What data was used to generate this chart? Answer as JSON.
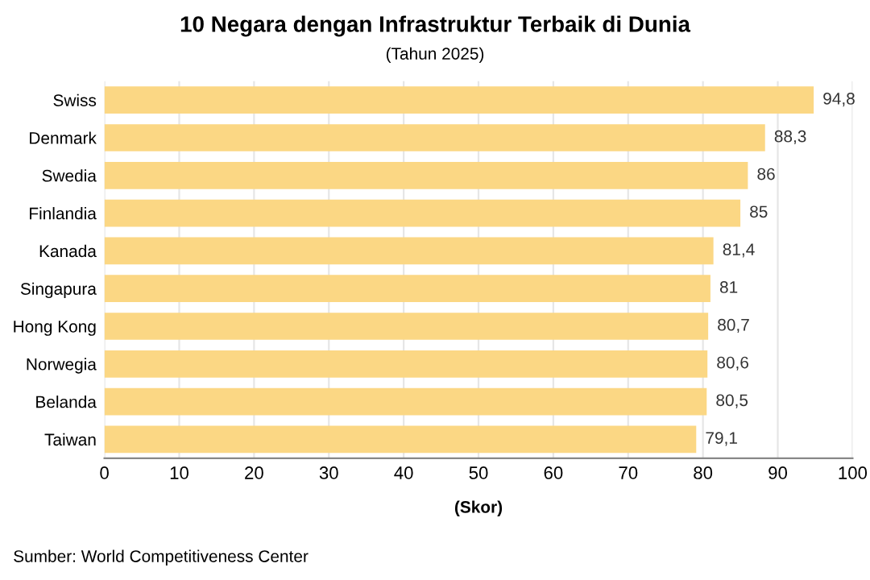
{
  "chart_data": {
    "type": "bar",
    "orientation": "horizontal",
    "title": "10 Negara dengan Infrastruktur Terbaik di Dunia",
    "subtitle": "(Tahun 2025)",
    "xlabel": "(Skor)",
    "categories": [
      "Swiss",
      "Denmark",
      "Swedia",
      "Finlandia",
      "Kanada",
      "Singapura",
      "Hong Kong",
      "Norwegia",
      "Belanda",
      "Taiwan"
    ],
    "values": [
      94.8,
      88.3,
      86,
      85,
      81.4,
      81,
      80.7,
      80.6,
      80.5,
      79.1
    ],
    "value_labels": [
      "94,8",
      "88,3",
      "86",
      "85",
      "81,4",
      "81",
      "80,7",
      "80,6",
      "80,5",
      "79,1"
    ],
    "color": "#fbd784",
    "xlim": [
      0,
      100
    ],
    "xticks": [
      0,
      10,
      20,
      30,
      40,
      50,
      60,
      70,
      80,
      90,
      100
    ],
    "grid": "x",
    "legend": false,
    "annotations": [
      "Sumber: World Competitiveness Center"
    ]
  }
}
